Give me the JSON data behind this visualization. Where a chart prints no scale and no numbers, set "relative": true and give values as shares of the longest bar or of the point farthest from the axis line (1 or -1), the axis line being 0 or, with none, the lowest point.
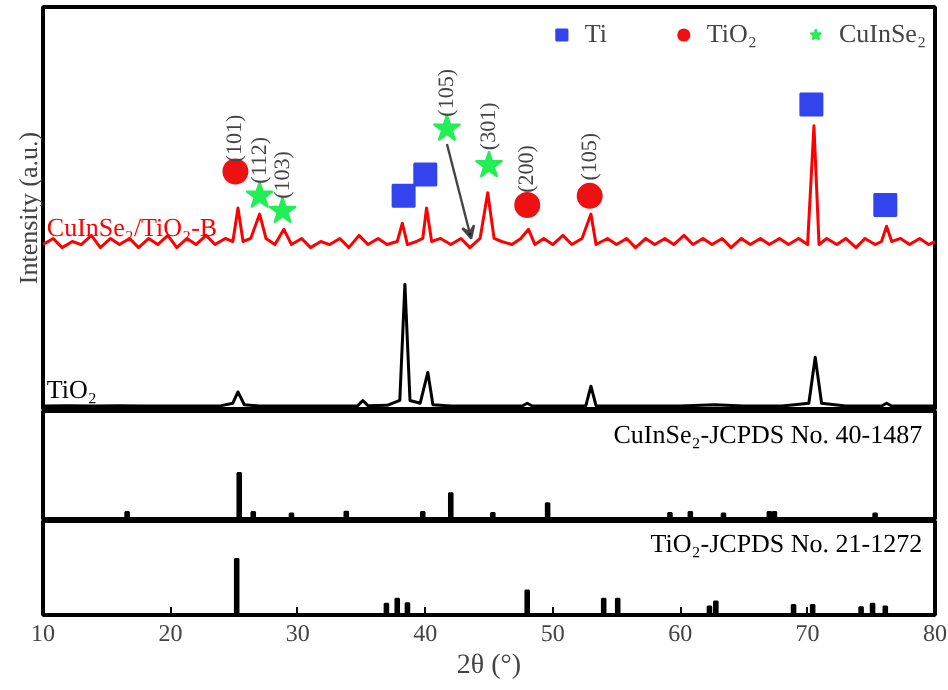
{
  "chart_data": [
    {
      "type": "line",
      "relative": true,
      "ylabel": "Intensity (a.u.)",
      "xlim": [
        10,
        80
      ],
      "xticks": [
        10,
        20,
        30,
        40,
        50,
        60,
        70,
        80
      ],
      "tick_labels": false,
      "legend": "top right",
      "line_style": "solid",
      "series": [
        {
          "name": "CuInSe₂/TiO₂-B",
          "color": "#ff0000",
          "type": "line",
          "x": [
            10,
            10.8,
            11.5,
            12.3,
            13,
            13.8,
            14.5,
            15.3,
            16,
            16.8,
            17.5,
            18.3,
            19,
            19.8,
            20.5,
            21.3,
            22,
            22.8,
            23.5,
            24.3,
            24.9,
            25.3,
            25.7,
            26.3,
            27.0,
            27.5,
            28.2,
            28.9,
            29.5,
            30.3,
            31,
            31.8,
            32.5,
            33.3,
            34,
            34.8,
            35.5,
            36.3,
            37,
            37.8,
            38.2,
            38.6,
            39.3,
            39.8,
            40.1,
            40.5,
            41.2,
            42,
            42.8,
            43.5,
            44.3,
            44.9,
            45.4,
            46,
            46.8,
            47.5,
            48.1,
            48.6,
            49.3,
            50,
            50.8,
            51.5,
            52.3,
            53.0,
            53.4,
            54.3,
            55,
            55.8,
            56.5,
            57.3,
            58,
            58.8,
            59.5,
            60.3,
            61,
            61.8,
            62.5,
            63.3,
            64,
            64.8,
            65.5,
            66.3,
            67,
            67.8,
            68.5,
            69.3,
            70,
            70.5,
            70.9,
            71.5,
            72.3,
            73,
            73.8,
            74.5,
            75.3,
            75.8,
            76.2,
            76.6,
            77.3,
            78,
            78.8,
            79.5,
            80
          ],
          "values": [
            0.54,
            0.56,
            0.53,
            0.55,
            0.54,
            0.57,
            0.53,
            0.56,
            0.54,
            0.56,
            0.53,
            0.56,
            0.54,
            0.57,
            0.53,
            0.56,
            0.54,
            0.57,
            0.54,
            0.56,
            0.55,
            0.66,
            0.55,
            0.56,
            0.64,
            0.56,
            0.54,
            0.59,
            0.54,
            0.56,
            0.53,
            0.55,
            0.54,
            0.56,
            0.53,
            0.57,
            0.54,
            0.56,
            0.54,
            0.55,
            0.61,
            0.54,
            0.55,
            0.56,
            0.66,
            0.55,
            0.56,
            0.54,
            0.56,
            0.53,
            0.56,
            0.71,
            0.56,
            0.55,
            0.54,
            0.56,
            0.59,
            0.54,
            0.56,
            0.54,
            0.57,
            0.54,
            0.56,
            0.64,
            0.54,
            0.56,
            0.54,
            0.56,
            0.53,
            0.56,
            0.54,
            0.56,
            0.54,
            0.57,
            0.54,
            0.56,
            0.54,
            0.56,
            0.53,
            0.56,
            0.54,
            0.56,
            0.54,
            0.56,
            0.54,
            0.56,
            0.54,
            0.93,
            0.54,
            0.56,
            0.54,
            0.56,
            0.53,
            0.56,
            0.54,
            0.55,
            0.6,
            0.55,
            0.56,
            0.54,
            0.56,
            0.54,
            0.55
          ]
        },
        {
          "name": "TiO₂",
          "color": "#000000",
          "type": "line",
          "x": [
            10,
            12,
            14,
            16,
            18,
            20,
            22,
            24,
            24.9,
            25.3,
            25.8,
            27,
            30,
            33,
            34.7,
            35.1,
            35.5,
            37,
            38.0,
            38.4,
            38.8,
            39.6,
            40.2,
            40.6,
            42,
            45,
            47.6,
            48.0,
            48.4,
            50,
            52.6,
            53.0,
            53.4,
            56,
            60,
            62.7,
            65,
            68,
            70.1,
            70.6,
            71.1,
            73,
            75.8,
            76.2,
            76.6,
            78,
            80
          ],
          "values": [
            0.01,
            0.011,
            0.01,
            0.011,
            0.01,
            0.01,
            0.01,
            0.011,
            0.019,
            0.056,
            0.014,
            0.01,
            0.01,
            0.01,
            0.011,
            0.028,
            0.011,
            0.012,
            0.028,
            0.41,
            0.028,
            0.019,
            0.12,
            0.014,
            0.01,
            0.01,
            0.01,
            0.019,
            0.01,
            0.01,
            0.011,
            0.075,
            0.011,
            0.01,
            0.01,
            0.014,
            0.01,
            0.01,
            0.019,
            0.17,
            0.019,
            0.01,
            0.01,
            0.019,
            0.01,
            0.01,
            0.01
          ]
        },
        {
          "name": "Ti",
          "color": "#3344ee",
          "type": "scatter",
          "marker": "square",
          "x": [
            38.3,
            40.0,
            70.3,
            76.1
          ],
          "values": [
            0.7,
            0.77,
            1.0,
            0.67
          ]
        },
        {
          "name": "TiO₂",
          "color": "#ee1111",
          "type": "scatter",
          "marker": "circle",
          "x": [
            25.1,
            48.0,
            52.9
          ],
          "values": [
            0.78,
            0.67,
            0.7
          ]
        },
        {
          "name": "CuInSe₂",
          "color": "#22ee55",
          "type": "scatter",
          "marker": "star",
          "x": [
            27.0,
            28.8,
            41.7,
            45.0
          ],
          "values": [
            0.7,
            0.65,
            0.92,
            0.8
          ]
        }
      ],
      "annotations": [
        {
          "text": "(101)",
          "x": 25.1,
          "y": 0.81
        },
        {
          "text": "(112)",
          "x": 27.0,
          "y": 0.74
        },
        {
          "text": "(103)",
          "x": 28.8,
          "y": 0.69
        },
        {
          "text": "(105)",
          "x": 41.7,
          "y": 0.96
        },
        {
          "text": "(301)",
          "x": 45.0,
          "y": 0.85
        },
        {
          "text": "(200)",
          "x": 48.0,
          "y": 0.71
        },
        {
          "text": "(105)",
          "x": 52.9,
          "y": 0.75
        }
      ]
    },
    {
      "type": "bar",
      "relative": true,
      "xlim": [
        10,
        80
      ],
      "xticks": [
        10,
        20,
        30,
        40,
        50,
        60,
        70,
        80
      ],
      "tick_labels": false,
      "series": [
        {
          "name": "CuInSe₂-JCPDS No. 40-1487",
          "color": "#000000",
          "x": [
            16.6,
            25.4,
            26.5,
            29.5,
            33.8,
            39.8,
            42.0,
            45.3,
            49.6,
            59.2,
            60.8,
            63.4,
            67.0,
            67.4,
            75.3
          ],
          "values": [
            0.15,
            1.0,
            0.15,
            0.12,
            0.16,
            0.15,
            0.56,
            0.13,
            0.34,
            0.13,
            0.15,
            0.12,
            0.15,
            0.15,
            0.12
          ]
        }
      ]
    },
    {
      "type": "bar",
      "relative": true,
      "xlim": [
        10,
        80
      ],
      "xticks": [
        10,
        20,
        30,
        40,
        50,
        60,
        70,
        80
      ],
      "xlabel": "2θ (°)",
      "series": [
        {
          "name": "TiO₂-JCPDS No. 21-1272",
          "color": "#000000",
          "x": [
            25.2,
            36.95,
            37.8,
            38.6,
            48.0,
            54.0,
            55.1,
            62.3,
            62.8,
            68.9,
            70.4,
            74.2,
            75.1,
            76.1
          ],
          "values": [
            1.0,
            0.2,
            0.29,
            0.21,
            0.44,
            0.29,
            0.29,
            0.15,
            0.24,
            0.18,
            0.18,
            0.14,
            0.2,
            0.15
          ]
        }
      ]
    }
  ]
}
